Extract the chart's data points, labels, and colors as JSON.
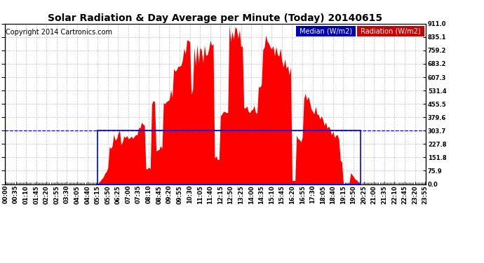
{
  "title": "Solar Radiation & Day Average per Minute (Today) 20140615",
  "copyright": "Copyright 2014 Cartronics.com",
  "yticks": [
    0.0,
    75.9,
    151.8,
    227.8,
    303.7,
    379.6,
    455.5,
    531.4,
    607.3,
    683.2,
    759.2,
    835.1,
    911.0
  ],
  "ymax": 911.0,
  "ymin": 0.0,
  "median_value": 303.7,
  "sunrise_idx": 63,
  "sunset_idx": 243,
  "n_points": 288,
  "x_tick_step": 7,
  "radiation_color": "#ff0000",
  "median_color": "#0000ff",
  "grid_color": "#aaaaaa",
  "title_fontsize": 10,
  "tick_fontsize": 6,
  "copyright_fontsize": 7,
  "legend_fontsize": 7
}
